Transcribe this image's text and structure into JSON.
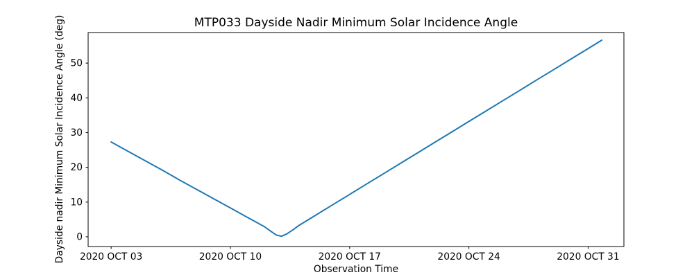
{
  "figure": {
    "background": "#ffffff"
  },
  "chart_data": {
    "type": "line",
    "title": "MTP033 Dayside Nadir Minimum Solar Incidence Angle",
    "xlabel": "Observation Time",
    "ylabel": "Dayside nadir Minimum Solar Incidence Angle (deg)",
    "x_axis_unit": "days since 2020 OCT 03",
    "xlim_days": [
      -1.35,
      30.1
    ],
    "ylim": [
      -2.8,
      58.8
    ],
    "grid": false,
    "legend": false,
    "line_color": "#1f77b4",
    "axis_color": "#000000",
    "xticks": [
      {
        "day": 0,
        "label": "2020 OCT 03"
      },
      {
        "day": 7,
        "label": "2020 OCT 10"
      },
      {
        "day": 14,
        "label": "2020 OCT 17"
      },
      {
        "day": 21,
        "label": "2020 OCT 24"
      },
      {
        "day": 28,
        "label": "2020 OCT 31"
      }
    ],
    "yticks": [
      0,
      10,
      20,
      30,
      40,
      50
    ],
    "series": [
      {
        "name": "dayside-nadir-minimum-solar-incidence-angle",
        "points": [
          [
            0,
            27.3
          ],
          [
            1,
            24.6
          ],
          [
            2,
            21.9
          ],
          [
            3,
            19.2
          ],
          [
            4,
            16.4
          ],
          [
            5,
            13.7
          ],
          [
            6,
            11.0
          ],
          [
            7,
            8.3
          ],
          [
            8,
            5.6
          ],
          [
            9,
            2.9
          ],
          [
            9.4,
            1.5
          ],
          [
            9.7,
            0.5
          ],
          [
            10,
            0.15
          ],
          [
            10.3,
            0.8
          ],
          [
            10.7,
            2.1
          ],
          [
            11,
            3.2
          ],
          [
            12,
            6.2
          ],
          [
            13,
            9.2
          ],
          [
            14,
            12.2
          ],
          [
            15,
            15.2
          ],
          [
            16,
            18.2
          ],
          [
            17,
            21.2
          ],
          [
            18,
            24.2
          ],
          [
            19,
            27.2
          ],
          [
            20,
            30.2
          ],
          [
            21,
            33.2
          ],
          [
            22,
            36.2
          ],
          [
            23,
            39.2
          ],
          [
            24,
            42.2
          ],
          [
            25,
            45.2
          ],
          [
            26,
            48.2
          ],
          [
            27,
            51.2
          ],
          [
            28,
            54.2
          ],
          [
            28.8,
            56.6
          ]
        ]
      }
    ]
  }
}
